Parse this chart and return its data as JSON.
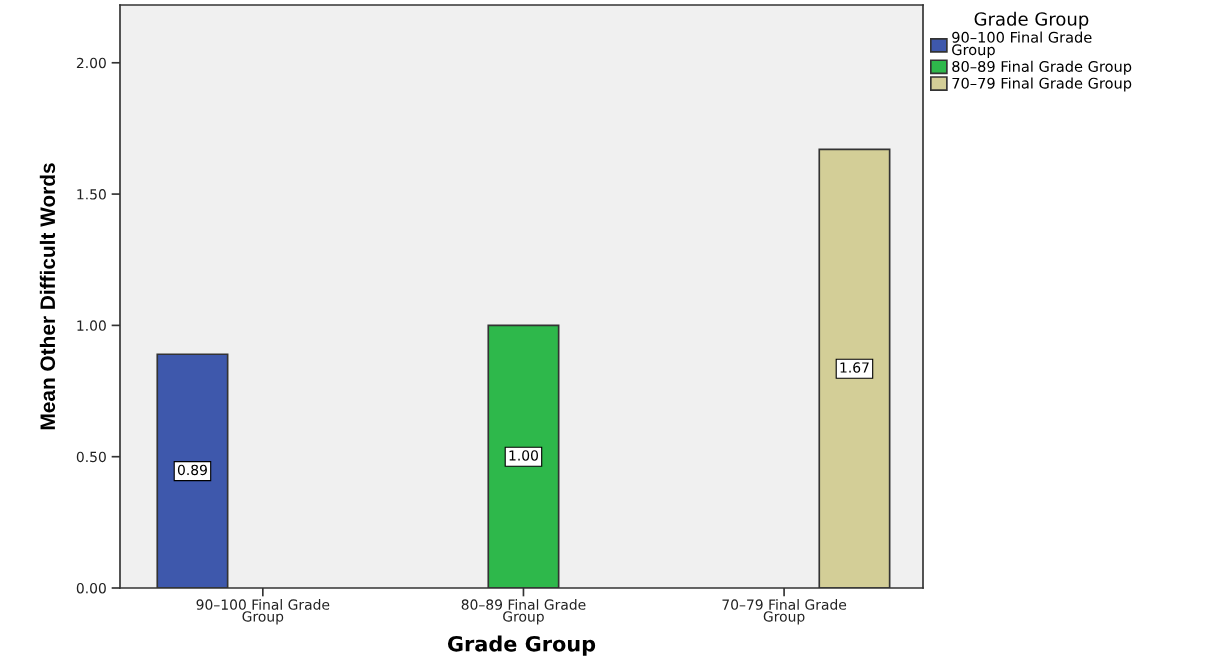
{
  "chart_data": {
    "type": "bar",
    "xlabel": "Grade Group",
    "ylabel": "Mean Other Difficult Words",
    "legend_title": "Grade Group",
    "categories": [
      "90–100 Final Grade Group",
      "80–89 Final Grade Group",
      "70–79 Final Grade Group"
    ],
    "series": [
      {
        "name": "90–100 Final Grade Group",
        "color": "#3e58ac",
        "values": [
          0.89,
          null,
          null
        ],
        "value_labels": [
          "0.89",
          null,
          null
        ]
      },
      {
        "name": "80–89 Final Grade Group",
        "color": "#2eb84b",
        "values": [
          null,
          1.0,
          null
        ],
        "value_labels": [
          null,
          "1.00",
          null
        ]
      },
      {
        "name": "70–79 Final Grade Group",
        "color": "#d3ce97",
        "values": [
          null,
          null,
          1.67
        ],
        "value_labels": [
          null,
          null,
          "1.67"
        ]
      }
    ],
    "ylim": [
      0,
      2.22
    ],
    "yticks": [
      {
        "value": 0,
        "label": "0.00"
      },
      {
        "value": 0.5,
        "label": "0.50"
      },
      {
        "value": 1.0,
        "label": "1.00"
      },
      {
        "value": 1.5,
        "label": "1.50"
      },
      {
        "value": 2.0,
        "label": "2.00"
      }
    ],
    "grid": false,
    "legend": "right"
  }
}
